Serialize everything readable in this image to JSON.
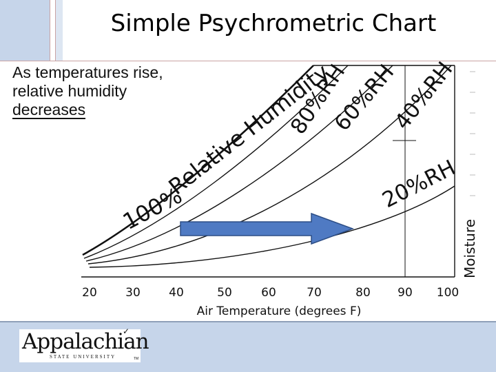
{
  "title": "Simple Psychrometric Chart",
  "caption": {
    "line1": "As temperatures rise,",
    "line2": "relative humidity",
    "line3": "decreases"
  },
  "curve_labels": {
    "rh100_a": "100%",
    "rh100_b": "Relative Humidity",
    "rh80": "80%RH",
    "rh60": "60%RH",
    "rh40": "40%RH",
    "rh20": "20%RH"
  },
  "x_axis": {
    "label": "Air Temperature (degrees F)",
    "ticks": [
      "20",
      "30",
      "40",
      "50",
      "60",
      "70",
      "80",
      "90",
      "100"
    ]
  },
  "y_axis": {
    "label": "Moisture"
  },
  "logo": {
    "name": "Appalachian",
    "sub": "STATE UNIVERSITY",
    "tm": "TM",
    "bird": "✓"
  },
  "colors": {
    "arrow": "#4f7ac3",
    "arrow_edge": "#2d4e86",
    "footer": "#c6d5ea"
  }
}
